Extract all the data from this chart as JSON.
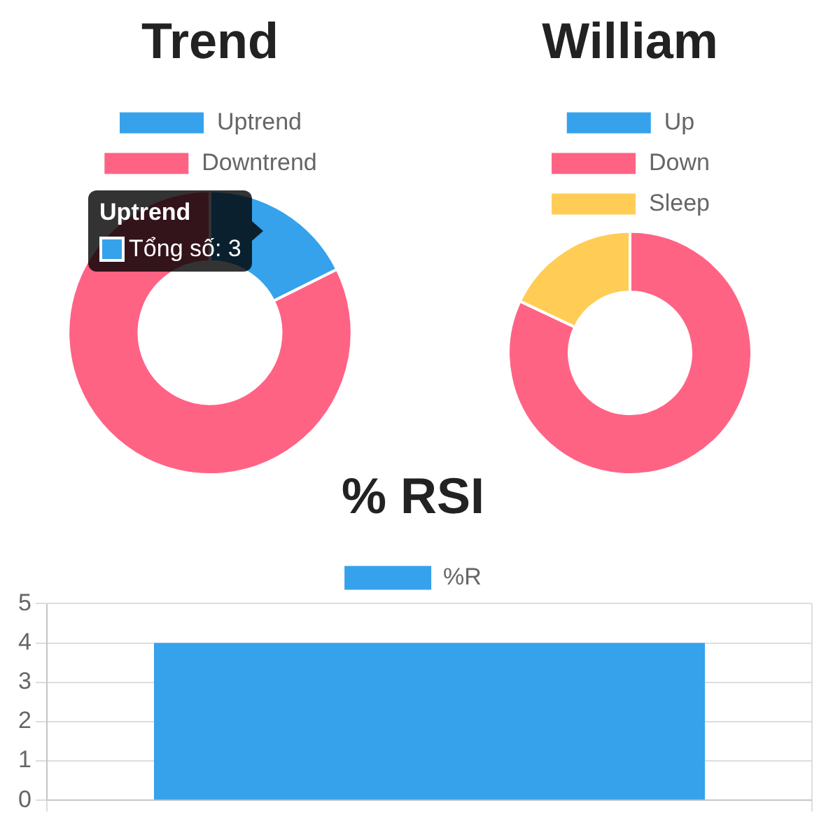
{
  "chart_data": [
    {
      "type": "donut",
      "title": "Trend",
      "categories": [
        "Uptrend",
        "Downtrend"
      ],
      "values": [
        3,
        14
      ],
      "colors": [
        "#36a2eb",
        "#ff6384"
      ],
      "legend": "top",
      "value_labels": [
        "Tổng số: 3",
        null
      ]
    },
    {
      "type": "donut",
      "title": "William",
      "categories": [
        "Up",
        "Down",
        "Sleep"
      ],
      "values": [
        0,
        82,
        18
      ],
      "colors": [
        "#36a2eb",
        "#ff6384",
        "#ffcd56"
      ],
      "legend": "top"
    },
    {
      "type": "bar",
      "title": "% RSI",
      "categories": [
        null
      ],
      "series": [
        {
          "name": "%R",
          "color": "#36a2eb",
          "values": [
            4
          ]
        }
      ],
      "ylim": [
        0,
        5
      ],
      "yticks": [
        0,
        1,
        2,
        3,
        4,
        5
      ],
      "grid": true,
      "legend": "top"
    }
  ]
}
